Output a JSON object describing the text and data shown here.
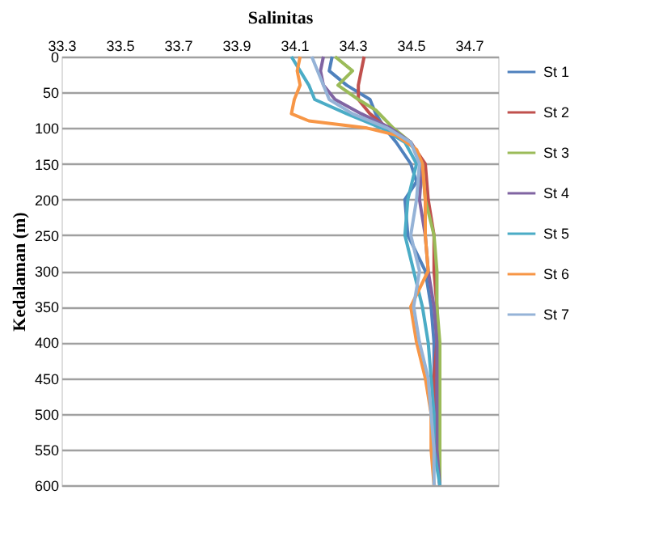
{
  "chart_data": {
    "type": "line",
    "xlabel": "Salinitas",
    "ylabel": "Kedalaman (m)",
    "xlim": [
      33.3,
      34.8
    ],
    "xticks": [
      33.3,
      33.5,
      33.7,
      33.9,
      34.1,
      34.3,
      34.5,
      34.7
    ],
    "ylim": [
      600,
      0
    ],
    "yticks": [
      0,
      50,
      100,
      150,
      200,
      250,
      300,
      350,
      400,
      450,
      500,
      550,
      600
    ],
    "grid": "y",
    "legend": "right",
    "line_style": "solid",
    "marker": "none",
    "series": [
      {
        "name": "St 1",
        "color": "#4f81bd",
        "x": [
          34.23,
          34.22,
          34.28,
          34.36,
          34.38,
          34.41,
          34.45,
          34.5,
          34.52,
          34.48,
          34.49,
          34.55,
          34.57,
          34.58,
          34.58,
          34.59,
          34.59,
          34.6
        ],
        "values": [
          0,
          20,
          40,
          60,
          80,
          100,
          120,
          150,
          175,
          200,
          250,
          300,
          350,
          400,
          450,
          500,
          550,
          600
        ]
      },
      {
        "name": "St 2",
        "color": "#c0504d",
        "x": [
          34.34,
          34.33,
          34.32,
          34.32,
          34.36,
          34.42,
          34.5,
          34.55,
          34.56,
          34.58,
          34.58,
          34.59,
          34.59,
          34.58,
          34.58,
          34.59,
          34.6
        ],
        "values": [
          0,
          20,
          40,
          60,
          80,
          100,
          120,
          150,
          200,
          250,
          300,
          350,
          400,
          450,
          500,
          550,
          600
        ]
      },
      {
        "name": "St 3",
        "color": "#9bbb59",
        "x": [
          34.24,
          34.3,
          34.25,
          34.32,
          34.38,
          34.44,
          34.5,
          34.54,
          34.55,
          34.58,
          34.59,
          34.59,
          34.6,
          34.6,
          34.6,
          34.6,
          34.6
        ],
        "values": [
          0,
          20,
          40,
          60,
          75,
          100,
          120,
          150,
          200,
          250,
          300,
          350,
          400,
          450,
          500,
          550,
          600
        ]
      },
      {
        "name": "St 4",
        "color": "#8064a2",
        "x": [
          34.2,
          34.19,
          34.2,
          34.24,
          34.33,
          34.43,
          34.5,
          34.54,
          34.53,
          34.55,
          34.56,
          34.58,
          34.59,
          34.59,
          34.59,
          34.59,
          34.6
        ],
        "values": [
          0,
          20,
          40,
          60,
          80,
          100,
          120,
          150,
          200,
          250,
          300,
          350,
          400,
          450,
          500,
          550,
          600
        ]
      },
      {
        "name": "St 5",
        "color": "#4bacc6",
        "x": [
          34.09,
          34.12,
          34.15,
          34.17,
          34.28,
          34.4,
          34.48,
          34.52,
          34.49,
          34.48,
          34.51,
          34.54,
          34.56,
          34.57,
          34.58,
          34.58,
          34.6
        ],
        "values": [
          0,
          20,
          40,
          60,
          80,
          100,
          120,
          150,
          200,
          250,
          300,
          350,
          400,
          450,
          500,
          550,
          600
        ]
      },
      {
        "name": "St 6",
        "color": "#f79646",
        "x": [
          34.12,
          34.11,
          34.12,
          34.1,
          34.09,
          34.15,
          34.35,
          34.45,
          34.52,
          34.54,
          34.55,
          34.55,
          34.56,
          34.5,
          34.52,
          34.55,
          34.57,
          34.57,
          34.58
        ],
        "values": [
          0,
          20,
          40,
          60,
          80,
          90,
          100,
          110,
          130,
          150,
          200,
          250,
          300,
          350,
          400,
          450,
          500,
          550,
          600
        ]
      },
      {
        "name": "St 7",
        "color": "#95b3d7",
        "x": [
          34.16,
          34.18,
          34.2,
          34.22,
          34.3,
          34.42,
          34.5,
          34.53,
          34.52,
          34.5,
          34.53,
          34.51,
          34.53,
          34.56,
          34.57,
          34.58,
          34.58
        ],
        "values": [
          0,
          20,
          40,
          60,
          80,
          100,
          120,
          150,
          200,
          250,
          300,
          350,
          400,
          450,
          500,
          550,
          600
        ]
      }
    ]
  }
}
